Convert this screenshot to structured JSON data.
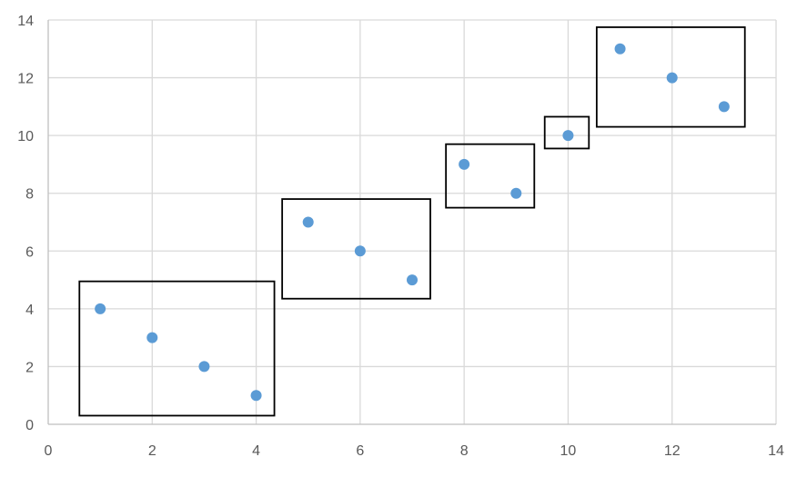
{
  "chart_data": {
    "type": "scatter",
    "title": "",
    "xlabel": "",
    "ylabel": "",
    "xlim": [
      0,
      14
    ],
    "ylim": [
      0,
      14
    ],
    "xticks": [
      0,
      2,
      4,
      6,
      8,
      10,
      12,
      14
    ],
    "yticks": [
      0,
      2,
      4,
      6,
      8,
      10,
      12,
      14
    ],
    "grid": true,
    "legend": "none",
    "series": [
      {
        "name": "Series 1",
        "color": "#5B9BD5",
        "points": [
          {
            "x": 1,
            "y": 4
          },
          {
            "x": 2,
            "y": 3
          },
          {
            "x": 3,
            "y": 2
          },
          {
            "x": 4,
            "y": 1
          },
          {
            "x": 5,
            "y": 7
          },
          {
            "x": 6,
            "y": 6
          },
          {
            "x": 7,
            "y": 5
          },
          {
            "x": 8,
            "y": 9
          },
          {
            "x": 9,
            "y": 8
          },
          {
            "x": 10,
            "y": 10
          },
          {
            "x": 11,
            "y": 13
          },
          {
            "x": 12,
            "y": 12
          },
          {
            "x": 13,
            "y": 11
          }
        ]
      }
    ],
    "groups": [
      {
        "name": "group-1",
        "x_range": [
          0.6,
          4.35
        ],
        "y_range": [
          0.3,
          4.95
        ]
      },
      {
        "name": "group-2",
        "x_range": [
          4.5,
          7.35
        ],
        "y_range": [
          4.35,
          7.8
        ]
      },
      {
        "name": "group-3",
        "x_range": [
          7.65,
          9.35
        ],
        "y_range": [
          7.5,
          9.7
        ]
      },
      {
        "name": "group-4",
        "x_range": [
          9.55,
          10.4
        ],
        "y_range": [
          9.55,
          10.65
        ]
      },
      {
        "name": "group-5",
        "x_range": [
          10.55,
          13.4
        ],
        "y_range": [
          10.3,
          13.75
        ]
      }
    ],
    "colors": {
      "grid": "#D9D9D9",
      "axis": "#BFBFBF",
      "tick_label": "#595959",
      "group_box": "#000000"
    }
  }
}
